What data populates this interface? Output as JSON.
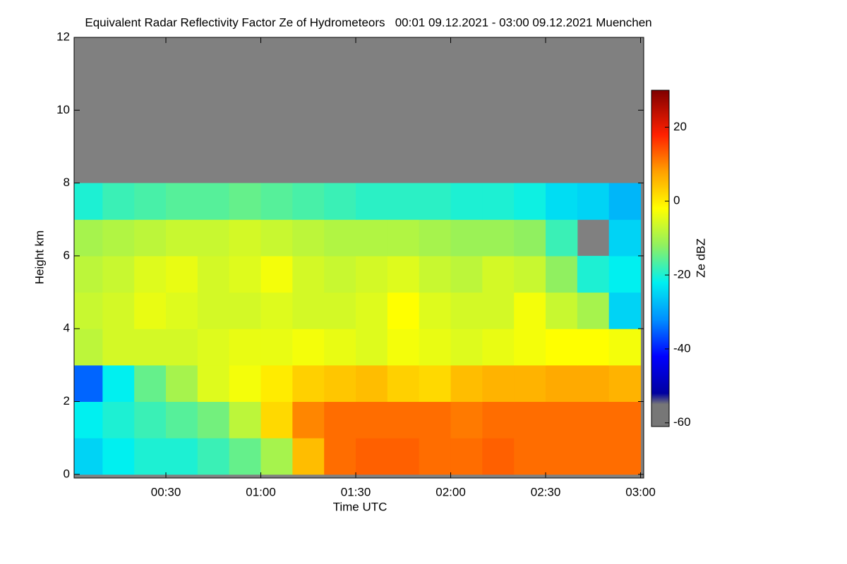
{
  "chart_data": {
    "type": "heatmap",
    "title": "Equivalent Radar Reflectivity Factor Ze of Hydrometeors   00:01 09.12.2021 - 03:00 09.12.2021 Muenchen",
    "xlabel": "Time UTC",
    "ylabel": "Height km",
    "colorbar_label": "Ze dBZ",
    "xlim": [
      1,
      181
    ],
    "xticks": [
      {
        "value": 30,
        "label": "00:30"
      },
      {
        "value": 60,
        "label": "01:00"
      },
      {
        "value": 90,
        "label": "01:30"
      },
      {
        "value": 120,
        "label": "02:00"
      },
      {
        "value": 150,
        "label": "02:30"
      },
      {
        "value": 180,
        "label": "03:00"
      }
    ],
    "ylim": [
      -0.1,
      12
    ],
    "yticks": [
      0,
      2,
      4,
      6,
      8,
      10,
      12
    ],
    "clim": [
      -61,
      30
    ],
    "cticks": [
      -60,
      -40,
      -20,
      0,
      20
    ],
    "background": "#808080",
    "colorscale": [
      [
        -61,
        "#777777"
      ],
      [
        -55,
        "#777777"
      ],
      [
        -52,
        "#0000a0"
      ],
      [
        -42,
        "#0000ff"
      ],
      [
        -32,
        "#0090ff"
      ],
      [
        -22,
        "#00f0f0"
      ],
      [
        -12,
        "#90f060"
      ],
      [
        -2,
        "#ffff00"
      ],
      [
        8,
        "#ffa000"
      ],
      [
        18,
        "#ff2000"
      ],
      [
        30,
        "#800000"
      ]
    ],
    "x": [
      5,
      15,
      25,
      35,
      45,
      55,
      65,
      75,
      85,
      95,
      105,
      115,
      125,
      135,
      145,
      155,
      165,
      175
    ],
    "y": [
      0.5,
      1.5,
      2.5,
      3.5,
      4.5,
      5.5,
      6.5,
      7.5,
      8.5,
      9.5,
      10.5,
      11.5
    ],
    "z": [
      [
        -25,
        -22,
        -20,
        -20,
        -18,
        -15,
        -10,
        5,
        12,
        13,
        13,
        12,
        12,
        13,
        12,
        12,
        12,
        12
      ],
      [
        -22,
        -20,
        -18,
        -16,
        -14,
        -8,
        2,
        10,
        12,
        12,
        12,
        12,
        11,
        12,
        12,
        12,
        12,
        12
      ],
      [
        -35,
        -22,
        -15,
        -10,
        -5,
        -3,
        0,
        3,
        4,
        5,
        3,
        2,
        5,
        6,
        6,
        7,
        7,
        6
      ],
      [
        -8,
        -6,
        -6,
        -6,
        -5,
        -4,
        -4,
        -3,
        -4,
        -5,
        -3,
        -4,
        -5,
        -4,
        -3,
        -2,
        -2,
        -3
      ],
      [
        -7,
        -6,
        -4,
        -5,
        -6,
        -6,
        -5,
        -6,
        -6,
        -5,
        -2,
        -5,
        -6,
        -6,
        -3,
        -7,
        -10,
        -25
      ],
      [
        -8,
        -7,
        -5,
        -4,
        -6,
        -5,
        -3,
        -6,
        -7,
        -6,
        -5,
        -7,
        -8,
        -6,
        -7,
        -12,
        -20,
        -22
      ],
      [
        -10,
        -9,
        -8,
        -7,
        -7,
        -6,
        -7,
        -8,
        -9,
        -9,
        -9,
        -10,
        -11,
        -11,
        -12,
        -18,
        null,
        -25
      ],
      [
        -20,
        -18,
        -17,
        -16,
        -16,
        -15,
        -16,
        -17,
        -18,
        -19,
        -19,
        -19,
        -20,
        -20,
        -21,
        -24,
        -25,
        -28
      ],
      [
        null,
        null,
        null,
        null,
        null,
        null,
        null,
        null,
        null,
        null,
        null,
        null,
        null,
        null,
        null,
        null,
        null,
        null
      ],
      [
        null,
        null,
        null,
        null,
        null,
        null,
        null,
        null,
        null,
        null,
        null,
        null,
        null,
        null,
        null,
        null,
        null,
        null
      ],
      [
        null,
        null,
        null,
        null,
        null,
        null,
        null,
        null,
        null,
        null,
        null,
        null,
        null,
        null,
        null,
        null,
        null,
        null
      ],
      [
        null,
        null,
        null,
        null,
        null,
        null,
        null,
        null,
        null,
        null,
        null,
        null,
        null,
        null,
        null,
        null,
        null,
        null
      ]
    ]
  }
}
